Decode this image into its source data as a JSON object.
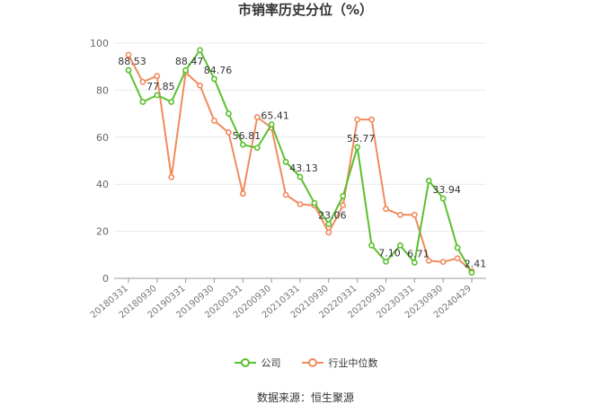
{
  "title": "市销率历史分位（%）",
  "source": "数据来源：恒生聚源",
  "colors": {
    "company": "#5ac02e",
    "industry": "#f28a5c",
    "grid": "#e9e9e9",
    "axis": "#999999"
  },
  "chart_data": {
    "type": "line",
    "title": "市销率历史分位（%）",
    "ylim": [
      0,
      100
    ],
    "yticks": [
      0,
      20,
      40,
      60,
      80,
      100
    ],
    "grid": true,
    "legend_position": "bottom",
    "x_tick_labels": [
      "20180331",
      "20180930",
      "20190331",
      "20190930",
      "20200331",
      "20200930",
      "20210331",
      "20210930",
      "20220331",
      "20220930",
      "20230331",
      "20230930",
      "20240429"
    ],
    "x": [
      "20180331",
      "20180630",
      "20180930",
      "20181231",
      "20190331",
      "20190630",
      "20190930",
      "20191231",
      "20200331",
      "20200630",
      "20200930",
      "20201231",
      "20210331",
      "20210630",
      "20210930",
      "20211231",
      "20220331",
      "20220630",
      "20220930",
      "20221231",
      "20230331",
      "20230630",
      "20230930",
      "20231231",
      "20240429"
    ],
    "series": [
      {
        "name": "公司",
        "values": [
          88.53,
          75.0,
          77.85,
          75.0,
          88.47,
          97.0,
          84.76,
          70.0,
          56.81,
          55.5,
          65.41,
          49.5,
          43.13,
          32.0,
          23.06,
          35.0,
          55.77,
          14.0,
          7.1,
          14.0,
          6.71,
          41.5,
          33.94,
          13.0,
          2.41
        ]
      },
      {
        "name": "行业中位数",
        "values": [
          95.0,
          83.5,
          86.0,
          43.0,
          87.5,
          82.0,
          67.0,
          62.0,
          36.0,
          68.5,
          64.0,
          35.5,
          31.5,
          31.0,
          19.5,
          31.0,
          67.5,
          67.5,
          29.5,
          27.0,
          27.0,
          7.5,
          7.0,
          8.5,
          3.0
        ]
      }
    ],
    "data_labels": [
      {
        "index": 0,
        "text": "88.53"
      },
      {
        "index": 2,
        "text": "77.85"
      },
      {
        "index": 4,
        "text": "88.47"
      },
      {
        "index": 6,
        "text": "84.76"
      },
      {
        "index": 8,
        "text": "56.81"
      },
      {
        "index": 10,
        "text": "65.41"
      },
      {
        "index": 12,
        "text": "43.13"
      },
      {
        "index": 14,
        "text": "23.06"
      },
      {
        "index": 16,
        "text": "55.77"
      },
      {
        "index": 18,
        "text": "7.10"
      },
      {
        "index": 20,
        "text": "6.71"
      },
      {
        "index": 22,
        "text": "33.94"
      },
      {
        "index": 24,
        "text": "2.41"
      }
    ]
  }
}
